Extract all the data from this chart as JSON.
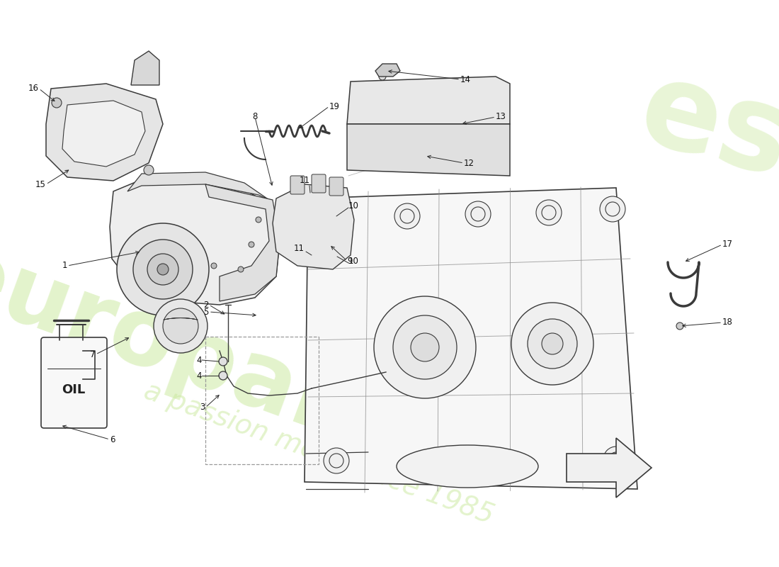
{
  "bg": "#ffffff",
  "lc": "#3a3a3a",
  "lc_light": "#888888",
  "ac": "#2a2a2a",
  "tc": "#111111",
  "dc": "#999999",
  "wc_green": "#c8e89a",
  "figsize": [
    11.0,
    8.0
  ],
  "dpi": 100,
  "xlim": [
    0,
    1100
  ],
  "ylim": [
    0,
    800
  ]
}
